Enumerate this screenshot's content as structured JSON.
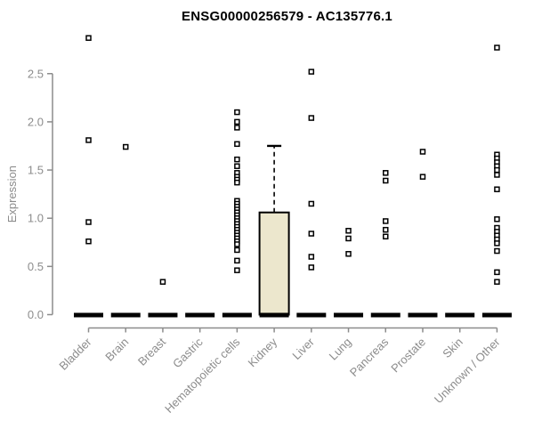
{
  "title": "ENSG00000256579 - AC135776.1",
  "colors": {
    "background": "#FFFFFF",
    "axis": "#8C8C8C",
    "axis_text": "#8C8C8C",
    "title_text": "#000000",
    "point_stroke": "#000000",
    "box_fill": "#ECE7CD",
    "box_stroke": "#000000",
    "zero_bar": "#000000"
  },
  "chart_data": {
    "type": "boxplot",
    "title": "ENSG00000256579 - AC135776.1",
    "xlabel": "",
    "ylabel": "Expression",
    "ylim": [
      0,
      2.9
    ],
    "yticks": [
      0.0,
      0.5,
      1.0,
      1.5,
      2.0,
      2.5
    ],
    "grid": false,
    "legend": null,
    "categories": [
      "Bladder",
      "Brain",
      "Breast",
      "Gastric",
      "Hematopoietic cells",
      "Kidney",
      "Liver",
      "Lung",
      "Pancreas",
      "Prostate",
      "Skin",
      "Unknown / Other"
    ],
    "series": [
      {
        "name": "Bladder",
        "box": {
          "q1": 0,
          "median": 0,
          "q3": 0,
          "whisker_low": 0,
          "whisker_high": 0
        },
        "points": [
          2.87,
          1.81,
          0.96,
          0.76
        ]
      },
      {
        "name": "Brain",
        "box": {
          "q1": 0,
          "median": 0,
          "q3": 0,
          "whisker_low": 0,
          "whisker_high": 0
        },
        "points": [
          1.74
        ]
      },
      {
        "name": "Breast",
        "box": {
          "q1": 0,
          "median": 0,
          "q3": 0,
          "whisker_low": 0,
          "whisker_high": 0
        },
        "points": [
          0.34
        ]
      },
      {
        "name": "Gastric",
        "box": {
          "q1": 0,
          "median": 0,
          "q3": 0,
          "whisker_low": 0,
          "whisker_high": 0
        },
        "points": []
      },
      {
        "name": "Hematopoietic cells",
        "box": {
          "q1": 0,
          "median": 0,
          "q3": 0,
          "whisker_low": 0,
          "whisker_high": 0
        },
        "points": [
          2.1,
          2.0,
          1.94,
          1.77,
          1.61,
          1.54,
          1.47,
          1.43,
          1.4,
          1.37,
          1.18,
          1.15,
          1.12,
          1.09,
          1.06,
          1.03,
          1.0,
          0.97,
          0.94,
          0.91,
          0.88,
          0.85,
          0.82,
          0.79,
          0.76,
          0.73,
          0.67,
          0.56,
          0.46
        ]
      },
      {
        "name": "Kidney",
        "box": {
          "q1": 0,
          "median": 0,
          "q3": 1.06,
          "whisker_low": 0,
          "whisker_high": 1.75
        },
        "points": []
      },
      {
        "name": "Liver",
        "box": {
          "q1": 0,
          "median": 0,
          "q3": 0,
          "whisker_low": 0,
          "whisker_high": 0
        },
        "points": [
          2.52,
          2.04,
          1.15,
          0.84,
          0.6,
          0.49
        ]
      },
      {
        "name": "Lung",
        "box": {
          "q1": 0,
          "median": 0,
          "q3": 0,
          "whisker_low": 0,
          "whisker_high": 0
        },
        "points": [
          0.87,
          0.79,
          0.63
        ]
      },
      {
        "name": "Pancreas",
        "box": {
          "q1": 0,
          "median": 0,
          "q3": 0,
          "whisker_low": 0,
          "whisker_high": 0
        },
        "points": [
          1.47,
          1.39,
          0.97,
          0.88,
          0.81
        ]
      },
      {
        "name": "Prostate",
        "box": {
          "q1": 0,
          "median": 0,
          "q3": 0,
          "whisker_low": 0,
          "whisker_high": 0
        },
        "points": [
          1.69,
          1.43
        ]
      },
      {
        "name": "Skin",
        "box": {
          "q1": 0,
          "median": 0,
          "q3": 0,
          "whisker_low": 0,
          "whisker_high": 0
        },
        "points": []
      },
      {
        "name": "Unknown / Other",
        "box": {
          "q1": 0,
          "median": 0,
          "q3": 0,
          "whisker_low": 0,
          "whisker_high": 0
        },
        "points": [
          2.77,
          1.66,
          1.62,
          1.58,
          1.54,
          1.5,
          1.45,
          1.3,
          0.99,
          0.9,
          0.86,
          0.82,
          0.78,
          0.74,
          0.66,
          0.44,
          0.34
        ]
      }
    ]
  }
}
